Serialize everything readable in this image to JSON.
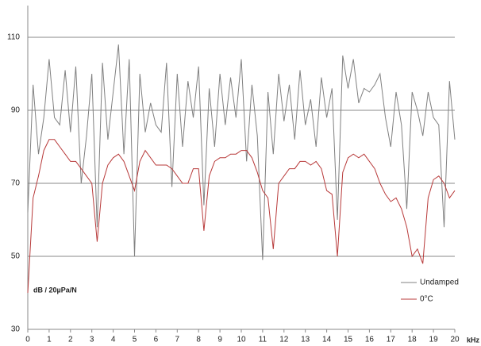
{
  "chart_data": {
    "type": "line",
    "annotations": [
      "dB / 20µPa/N",
      "kHz"
    ],
    "x": [
      0,
      0.25,
      0.5,
      0.75,
      1,
      1.25,
      1.5,
      1.75,
      2,
      2.25,
      2.5,
      2.75,
      3,
      3.25,
      3.5,
      3.75,
      4,
      4.25,
      4.5,
      4.75,
      5,
      5.25,
      5.5,
      5.75,
      6,
      6.25,
      6.5,
      6.75,
      7,
      7.25,
      7.5,
      7.75,
      8,
      8.25,
      8.5,
      8.75,
      9,
      9.25,
      9.5,
      9.75,
      10,
      10.25,
      10.5,
      10.75,
      11,
      11.25,
      11.5,
      11.75,
      12,
      12.25,
      12.5,
      12.75,
      13,
      13.25,
      13.5,
      13.75,
      14,
      14.25,
      14.5,
      14.75,
      15,
      15.25,
      15.5,
      15.75,
      16,
      16.25,
      16.5,
      16.75,
      17,
      17.25,
      17.5,
      17.75,
      18,
      18.25,
      18.5,
      18.75,
      19,
      19.25,
      19.5,
      19.75,
      20
    ],
    "series": [
      {
        "name": "Undamped",
        "color": "#808080",
        "values": [
          62,
          97,
          78,
          88,
          104,
          88,
          86,
          101,
          84,
          102,
          70,
          83,
          100,
          58,
          103,
          82,
          95,
          108,
          78,
          104,
          50,
          100,
          84,
          92,
          86,
          84,
          103,
          69,
          100,
          80,
          98,
          88,
          102,
          64,
          96,
          80,
          100,
          86,
          99,
          88,
          104,
          76,
          97,
          83,
          49,
          95,
          78,
          100,
          87,
          97,
          82,
          101,
          86,
          93,
          80,
          99,
          88,
          96,
          60,
          105,
          96,
          104,
          92,
          96,
          95,
          97,
          100,
          88,
          80,
          95,
          86,
          63,
          95,
          90,
          83,
          95,
          88,
          86,
          58,
          98,
          82
        ]
      },
      {
        "name": "0°C",
        "color": "#b83a3a",
        "values": [
          40,
          66,
          72,
          79,
          82,
          82,
          80,
          78,
          76,
          76,
          74,
          72,
          70,
          54,
          70,
          75,
          77,
          78,
          76,
          72,
          68,
          76,
          79,
          77,
          75,
          75,
          75,
          74,
          72,
          70,
          70,
          74,
          74,
          57,
          72,
          76,
          77,
          77,
          78,
          78,
          79,
          79,
          77,
          73,
          68,
          66,
          52,
          70,
          72,
          74,
          74,
          76,
          76,
          75,
          76,
          74,
          68,
          67,
          50,
          73,
          77,
          78,
          77,
          78,
          76,
          74,
          70,
          67,
          65,
          66,
          63,
          58,
          50,
          52,
          48,
          66,
          71,
          72,
          70,
          66,
          68
        ]
      }
    ],
    "xlim": [
      0,
      20
    ],
    "xticks": [
      0,
      1,
      2,
      3,
      4,
      5,
      6,
      7,
      8,
      9,
      10,
      11,
      12,
      13,
      14,
      15,
      16,
      17,
      18,
      19,
      20
    ],
    "ylim": [
      30,
      110
    ],
    "yticks": [
      30,
      50,
      70,
      90,
      110
    ],
    "grid": true,
    "legend": "lower right"
  }
}
